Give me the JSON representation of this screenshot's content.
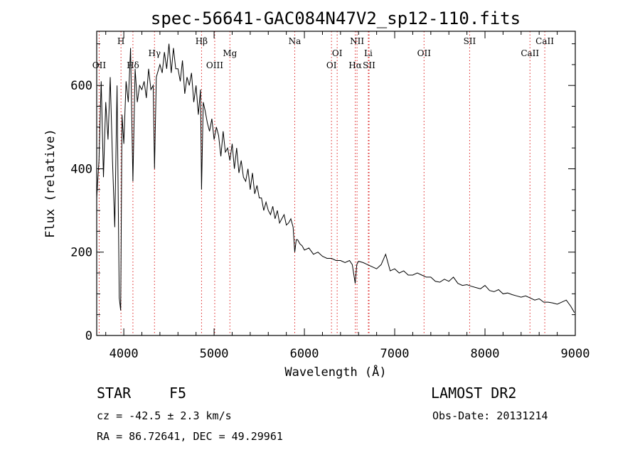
{
  "chart_data": {
    "type": "line",
    "title": "spec-56641-GAC084N47V2_sp12-110.fits",
    "xlabel": "Wavelength (Å)",
    "ylabel": "Flux (relative)",
    "xlim": [
      3700,
      9000
    ],
    "ylim": [
      0,
      730
    ],
    "x_ticks": [
      4000,
      5000,
      6000,
      7000,
      8000,
      9000
    ],
    "y_ticks": [
      0,
      200,
      400,
      600
    ],
    "series": [
      {
        "x": [
          3700,
          3725,
          3750,
          3775,
          3800,
          3825,
          3850,
          3875,
          3900,
          3925,
          3950,
          3965,
          3980,
          4000,
          4025,
          4050,
          4075,
          4101,
          4125,
          4150,
          4175,
          4200,
          4225,
          4250,
          4275,
          4300,
          4325,
          4340,
          4360,
          4400,
          4425,
          4450,
          4475,
          4500,
          4525,
          4550,
          4575,
          4600,
          4625,
          4650,
          4675,
          4700,
          4725,
          4750,
          4775,
          4800,
          4825,
          4850,
          4861,
          4880,
          4900,
          4925,
          4950,
          4975,
          5000,
          5025,
          5050,
          5075,
          5100,
          5125,
          5150,
          5175,
          5200,
          5225,
          5250,
          5275,
          5300,
          5325,
          5350,
          5375,
          5400,
          5425,
          5450,
          5475,
          5500,
          5525,
          5550,
          5575,
          5600,
          5625,
          5650,
          5675,
          5700,
          5725,
          5750,
          5775,
          5800,
          5825,
          5850,
          5875,
          5893,
          5910,
          5925,
          5950,
          5975,
          6000,
          6050,
          6100,
          6150,
          6200,
          6250,
          6300,
          6350,
          6400,
          6450,
          6500,
          6530,
          6563,
          6580,
          6600,
          6650,
          6700,
          6750,
          6800,
          6850,
          6900,
          6950,
          7000,
          7050,
          7100,
          7150,
          7200,
          7250,
          7300,
          7350,
          7400,
          7450,
          7500,
          7550,
          7600,
          7650,
          7700,
          7750,
          7800,
          7850,
          7900,
          7950,
          8000,
          8050,
          8100,
          8150,
          8200,
          8250,
          8300,
          8350,
          8400,
          8450,
          8500,
          8550,
          8600,
          8650,
          8700,
          8750,
          8800,
          8850,
          8900,
          8950,
          8990
        ],
        "y": [
          330,
          420,
          610,
          380,
          560,
          470,
          620,
          420,
          260,
          600,
          90,
          60,
          530,
          460,
          610,
          560,
          690,
          370,
          640,
          560,
          600,
          590,
          610,
          570,
          640,
          590,
          600,
          400,
          620,
          650,
          630,
          680,
          640,
          700,
          630,
          690,
          640,
          640,
          610,
          660,
          580,
          620,
          600,
          630,
          560,
          600,
          530,
          590,
          350,
          560,
          540,
          510,
          490,
          520,
          470,
          500,
          480,
          430,
          490,
          440,
          450,
          420,
          460,
          400,
          450,
          390,
          420,
          380,
          370,
          400,
          350,
          390,
          340,
          360,
          330,
          330,
          300,
          320,
          300,
          290,
          310,
          280,
          300,
          270,
          280,
          290,
          265,
          270,
          280,
          260,
          200,
          230,
          230,
          220,
          215,
          205,
          210,
          195,
          200,
          190,
          185,
          185,
          180,
          180,
          175,
          180,
          170,
          125,
          170,
          178,
          175,
          170,
          165,
          160,
          170,
          195,
          155,
          160,
          150,
          155,
          145,
          145,
          150,
          145,
          140,
          140,
          130,
          128,
          135,
          130,
          140,
          125,
          120,
          122,
          118,
          115,
          112,
          120,
          108,
          105,
          110,
          100,
          102,
          98,
          95,
          92,
          95,
          90,
          85,
          88,
          80,
          80,
          78,
          75,
          80,
          85,
          70,
          55
        ]
      }
    ],
    "lines": [
      {
        "label": "H",
        "x": 3969,
        "row": 1,
        "color": "red"
      },
      {
        "label": "OII",
        "x": 3727,
        "row": 3,
        "color": "red"
      },
      {
        "label": "Hδ",
        "x": 4101,
        "row": 3,
        "color": "red"
      },
      {
        "label": "Hγ",
        "x": 4340,
        "row": 2,
        "color": "red"
      },
      {
        "label": "Hβ",
        "x": 4861,
        "row": 1,
        "color": "red"
      },
      {
        "label": "OIII",
        "x": 5007,
        "row": 3,
        "color": "red"
      },
      {
        "label": "Mg",
        "x": 5175,
        "row": 2,
        "color": "red"
      },
      {
        "label": "Na",
        "x": 5893,
        "row": 1,
        "color": "red"
      },
      {
        "label": "OI",
        "x": 6300,
        "row": 3,
        "color": "red"
      },
      {
        "label": "OI",
        "x": 6363,
        "row": 2,
        "color": "red"
      },
      {
        "label": "NII",
        "x": 6583,
        "row": 1,
        "color": "red"
      },
      {
        "label": "Hα",
        "x": 6563,
        "row": 3,
        "color": "red"
      },
      {
        "label": "Li",
        "x": 6708,
        "row": 2,
        "color": "red"
      },
      {
        "label": "SII",
        "x": 6716,
        "row": 3,
        "color": "red"
      },
      {
        "label": "OII",
        "x": 7325,
        "row": 2,
        "color": "red"
      },
      {
        "label": "SII",
        "x": 7830,
        "row": 1,
        "color": "red"
      },
      {
        "label": "CaII",
        "x": 8498,
        "row": 2,
        "color": "red"
      },
      {
        "label": "CaII",
        "x": 8662,
        "row": 1,
        "color": "red"
      }
    ],
    "grid": false
  },
  "info": {
    "object_type": "STAR",
    "subclass": "F5",
    "survey": "LAMOST DR2",
    "cz": "cz = -42.5 ± 2.3 km/s",
    "obs_date": "Obs-Date: 20131214",
    "radec": "RA =  86.72641, DEC =  49.29961"
  }
}
